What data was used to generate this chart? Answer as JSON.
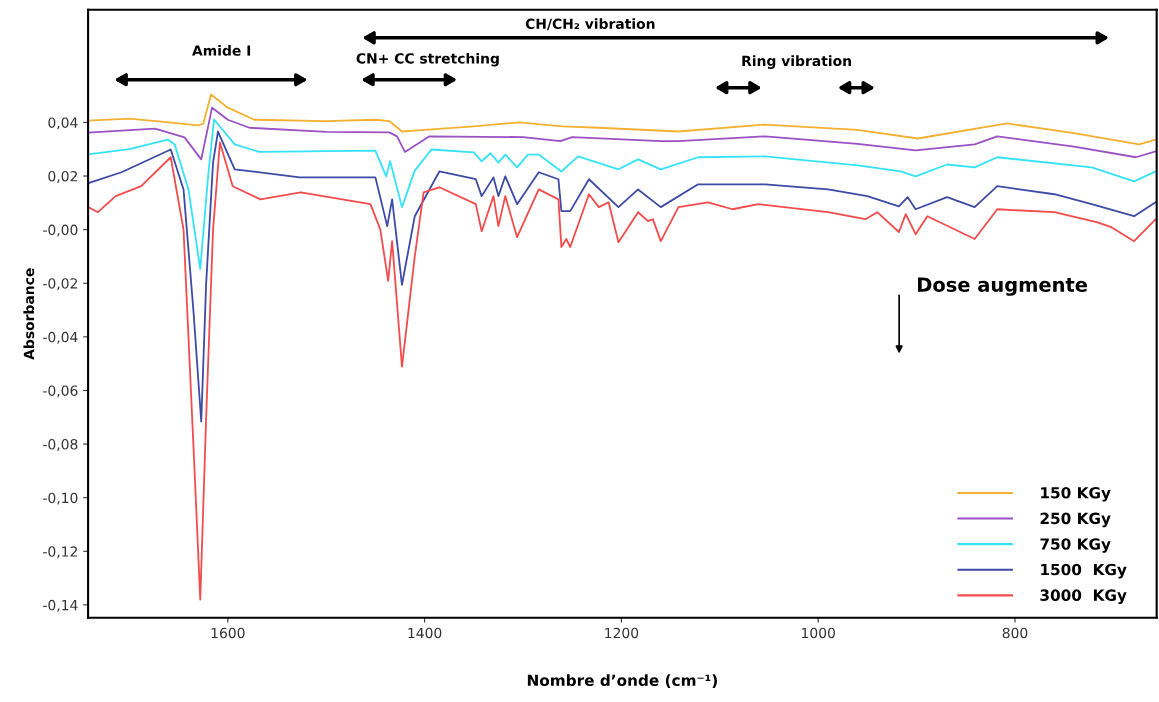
{
  "chart_data": {
    "type": "line",
    "xlabel": "Nombre d’onde (cm⁻¹)",
    "ylabel": "Absorbance",
    "xlim": [
      1742,
      656
    ],
    "ylim": [
      -0.1448,
      0.082
    ],
    "xticks": [
      1600,
      1400,
      1200,
      1000,
      800
    ],
    "yticks": [
      {
        "value": 0.04,
        "label": "0,04"
      },
      {
        "value": 0.02,
        "label": "0,02"
      },
      {
        "value": 0.0,
        "label": "-0,00"
      },
      {
        "value": -0.02,
        "label": "-0,02"
      },
      {
        "value": -0.04,
        "label": "-0,04"
      },
      {
        "value": -0.06,
        "label": "-0,06"
      },
      {
        "value": -0.08,
        "label": "-0,08"
      },
      {
        "value": -0.1,
        "label": "-0,10"
      },
      {
        "value": -0.12,
        "label": "-0,12"
      },
      {
        "value": -0.14,
        "label": "-0,14"
      }
    ],
    "grid": false,
    "legend": "lower right",
    "marker": "none",
    "line_style": "solid",
    "annotations": [
      "Amide I",
      "CH/CH₂ vibration",
      "CN+ CC stretching",
      "Ring vibration",
      "Dose augmente"
    ],
    "series": [
      {
        "name": "150 KGy",
        "color": "#f5b031",
        "x": [
          1742,
          1700,
          1660,
          1630,
          1625,
          1617,
          1600,
          1573,
          1500,
          1450,
          1436,
          1423,
          1400,
          1350,
          1304,
          1260,
          1223,
          1142,
          1054,
          960,
          899,
          808,
          740,
          674,
          657
        ],
        "values": [
          0.0407,
          0.0414,
          0.04,
          0.0389,
          0.0395,
          0.0504,
          0.0455,
          0.041,
          0.0405,
          0.041,
          0.0405,
          0.0366,
          0.0372,
          0.0385,
          0.04,
          0.0385,
          0.038,
          0.0366,
          0.0392,
          0.0372,
          0.034,
          0.0396,
          0.036,
          0.0318,
          0.0336
        ]
      },
      {
        "name": "250 KGy",
        "color": "#9b50c4",
        "x": [
          1742,
          1674,
          1644,
          1627,
          1616,
          1600,
          1578,
          1500,
          1436,
          1428,
          1420,
          1395,
          1300,
          1262,
          1250,
          1160,
          1142,
          1054,
          960,
          901,
          841,
          818,
          740,
          677,
          657
        ],
        "values": [
          0.0362,
          0.0377,
          0.0344,
          0.0262,
          0.0455,
          0.041,
          0.038,
          0.0365,
          0.0363,
          0.0348,
          0.029,
          0.0348,
          0.0345,
          0.033,
          0.0345,
          0.033,
          0.033,
          0.0348,
          0.032,
          0.0296,
          0.0318,
          0.0348,
          0.031,
          0.027,
          0.0292
        ]
      },
      {
        "name": "750 KGy",
        "color": "#35e2f7",
        "x": [
          1742,
          1700,
          1661,
          1654,
          1640,
          1628,
          1620,
          1614,
          1593,
          1568,
          1450,
          1439,
          1435,
          1423,
          1410,
          1393,
          1350,
          1342,
          1333,
          1325,
          1318,
          1306,
          1295,
          1284,
          1261,
          1244,
          1203,
          1183,
          1160,
          1122,
          1054,
          960,
          916,
          901,
          869,
          841,
          818,
          722,
          679,
          657
        ],
        "values": [
          0.0281,
          0.03,
          0.0336,
          0.0318,
          0.015,
          -0.0147,
          0.02,
          0.0411,
          0.0318,
          0.029,
          0.0295,
          0.0199,
          0.0255,
          0.0084,
          0.022,
          0.0299,
          0.0288,
          0.0255,
          0.0285,
          0.025,
          0.028,
          0.0232,
          0.028,
          0.028,
          0.0217,
          0.0273,
          0.0225,
          0.0262,
          0.0225,
          0.027,
          0.0273,
          0.024,
          0.0217,
          0.0199,
          0.0243,
          0.0232,
          0.027,
          0.0232,
          0.018,
          0.0217
        ]
      },
      {
        "name": "1500  KGy",
        "color": "#3d4ba6",
        "x": [
          1742,
          1708,
          1658,
          1645,
          1635,
          1627,
          1622,
          1615,
          1610,
          1593,
          1527,
          1450,
          1438,
          1433,
          1423,
          1410,
          1385,
          1348,
          1342,
          1330,
          1325,
          1318,
          1306,
          1284,
          1264,
          1261,
          1252,
          1233,
          1203,
          1183,
          1160,
          1122,
          1054,
          990,
          950,
          918,
          909,
          901,
          869,
          841,
          818,
          760,
          722,
          679,
          657
        ],
        "values": [
          0.0173,
          0.0214,
          0.0299,
          0.015,
          -0.03,
          -0.0716,
          -0.02,
          0.025,
          0.0366,
          0.0225,
          0.0195,
          0.0195,
          0.0013,
          0.0113,
          -0.0206,
          0.005,
          0.0217,
          0.0188,
          0.0125,
          0.0195,
          0.0125,
          0.0199,
          0.0095,
          0.0214,
          0.0188,
          0.0069,
          0.0069,
          0.0188,
          0.0084,
          0.015,
          0.0084,
          0.0169,
          0.0169,
          0.015,
          0.0125,
          0.0087,
          0.0121,
          0.0076,
          0.0121,
          0.0084,
          0.0162,
          0.0132,
          0.0095,
          0.005,
          0.0102
        ]
      },
      {
        "name": "3000  KGy",
        "color": "#f44c4c",
        "x": [
          1742,
          1732,
          1714,
          1688,
          1658,
          1645,
          1635,
          1628,
          1622,
          1615,
          1608,
          1595,
          1567,
          1526,
          1455,
          1445,
          1437,
          1433,
          1423,
          1410,
          1401,
          1385,
          1348,
          1342,
          1330,
          1325,
          1318,
          1306,
          1284,
          1264,
          1261,
          1256,
          1252,
          1233,
          1223,
          1213,
          1203,
          1183,
          1173,
          1168,
          1160,
          1142,
          1112,
          1087,
          1061,
          990,
          952,
          940,
          918,
          911,
          901,
          889,
          841,
          818,
          760,
          717,
          702,
          679,
          657
        ],
        "values": [
          0.0084,
          0.0065,
          0.0125,
          0.0162,
          0.027,
          0.0,
          -0.08,
          -0.138,
          -0.07,
          0.0,
          0.0325,
          0.0162,
          0.0113,
          0.0139,
          0.0095,
          0.0,
          -0.0191,
          -0.0043,
          -0.0511,
          -0.01,
          0.0139,
          0.0158,
          0.0095,
          -0.0006,
          0.0125,
          0.0013,
          0.0125,
          -0.0028,
          0.015,
          0.0113,
          -0.0065,
          -0.0035,
          -0.0065,
          0.0132,
          0.0084,
          0.0102,
          -0.0047,
          0.0065,
          0.0032,
          0.0039,
          -0.0043,
          0.0084,
          0.0102,
          0.0076,
          0.0095,
          0.0065,
          0.0039,
          0.0065,
          -0.0009,
          0.0058,
          -0.0017,
          0.005,
          -0.0035,
          0.0076,
          0.0065,
          0.0028,
          0.0009,
          -0.0043,
          0.0039
        ]
      }
    ]
  }
}
